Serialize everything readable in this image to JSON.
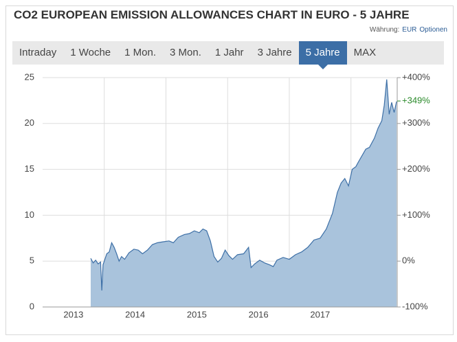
{
  "header": {
    "title": "CO2 EUROPEAN EMISSION ALLOWANCES CHART IN EURO - 5 JAHRE",
    "currency_label": "Währung:",
    "currency": "EUR",
    "options": "Optionen"
  },
  "tabs": {
    "labels": [
      "Intraday",
      "1 Woche",
      "1 Mon.",
      "3 Mon.",
      "1 Jahr",
      "3 Jahre",
      "5 Jahre",
      "MAX"
    ],
    "active": 6
  },
  "chart_data": {
    "type": "area",
    "color": "#3d6fa6",
    "fill": "#a9c3dc",
    "x": [
      2013.78,
      2013.82,
      2013.86,
      2013.9,
      2013.94,
      2013.96,
      2013.98,
      2014.0,
      2014.04,
      2014.08,
      2014.12,
      2014.16,
      2014.2,
      2014.24,
      2014.28,
      2014.33,
      2014.4,
      2014.48,
      2014.55,
      2014.62,
      2014.7,
      2014.78,
      2014.86,
      2014.95,
      2015.05,
      2015.12,
      2015.2,
      2015.3,
      2015.38,
      2015.46,
      2015.54,
      2015.6,
      2015.66,
      2015.72,
      2015.78,
      2015.84,
      2015.9,
      2015.96,
      2016.02,
      2016.08,
      2016.16,
      2016.26,
      2016.34,
      2016.38,
      2016.44,
      2016.52,
      2016.6,
      2016.68,
      2016.74,
      2016.8,
      2016.9,
      2017.0,
      2017.1,
      2017.2,
      2017.3,
      2017.4,
      2017.5,
      2017.6,
      2017.7,
      2017.78,
      2017.84,
      2017.9,
      2017.96,
      2018.02,
      2018.08,
      2018.12,
      2018.18,
      2018.24,
      2018.3,
      2018.38,
      2018.44,
      2018.5,
      2018.54,
      2018.58,
      2018.62,
      2018.66,
      2018.7,
      2018.74
    ],
    "values": [
      5.3,
      4.8,
      5.1,
      4.7,
      4.9,
      1.8,
      4.6,
      5.0,
      5.8,
      6.0,
      7.0,
      6.5,
      5.8,
      5.0,
      5.5,
      5.2,
      5.9,
      6.3,
      6.2,
      5.8,
      6.2,
      6.8,
      7.0,
      7.1,
      7.2,
      7.0,
      7.6,
      7.9,
      8.0,
      8.3,
      8.1,
      8.5,
      8.3,
      7.2,
      5.5,
      4.9,
      5.3,
      6.2,
      5.6,
      5.2,
      5.7,
      5.8,
      6.5,
      4.3,
      4.7,
      5.1,
      4.8,
      4.6,
      4.4,
      5.1,
      5.4,
      5.2,
      5.7,
      6.0,
      6.5,
      7.3,
      7.5,
      8.5,
      10.2,
      12.5,
      13.5,
      14.0,
      13.2,
      15.0,
      15.3,
      15.8,
      16.5,
      17.2,
      17.4,
      18.4,
      19.5,
      20.3,
      22.0,
      24.8,
      21.0,
      22.3,
      21.2,
      22.4
    ],
    "xlim": [
      2013,
      2018.75
    ],
    "xticks": [
      {
        "value": 2013.5,
        "label": "2013"
      },
      {
        "value": 2014.5,
        "label": "2014"
      },
      {
        "value": 2015.5,
        "label": "2015"
      },
      {
        "value": 2016.5,
        "label": "2016"
      },
      {
        "value": 2017.5,
        "label": "2017"
      }
    ],
    "xgrid": [
      2014,
      2015,
      2016,
      2017,
      2018
    ],
    "ylim": [
      0,
      25
    ],
    "yticks": [
      0,
      5,
      10,
      15,
      20,
      25
    ],
    "y2lim": [
      -100,
      400
    ],
    "y2ticks": [
      {
        "value": -100,
        "label": "-100%"
      },
      {
        "value": 0,
        "label": "0%"
      },
      {
        "value": 100,
        "label": "+100%"
      },
      {
        "value": 200,
        "label": "+200%"
      },
      {
        "value": 300,
        "label": "+300%"
      },
      {
        "value": 400,
        "label": "+400%"
      }
    ],
    "annotation": {
      "value": 349,
      "label": "+349%",
      "color": "#2a8a2a"
    },
    "grid": true
  }
}
